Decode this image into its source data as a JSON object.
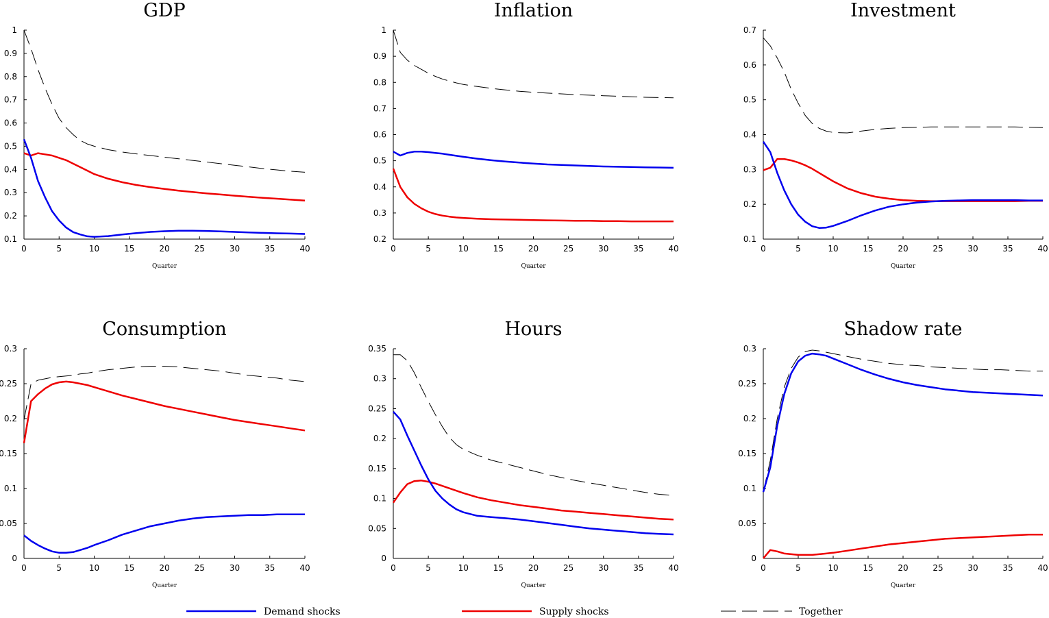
{
  "legend": {
    "demand_label": "Demand shocks",
    "supply_label": "Supply shocks",
    "together_label": "Together",
    "demand_color": "#0000ee",
    "supply_color": "#ee0000",
    "together_color": "#000000"
  },
  "chart_data": [
    {
      "type": "line",
      "title": "GDP",
      "xlabel": "Quarter",
      "xlim": [
        0,
        40
      ],
      "ylim": [
        0.1,
        1
      ],
      "x_ticks": [
        "0",
        "5",
        "10",
        "15",
        "20",
        "25",
        "30",
        "35",
        "40"
      ],
      "y_ticks": [
        "0.1",
        "0.2",
        "0.3",
        "0.4",
        "0.5",
        "0.6",
        "0.7",
        "0.8",
        "0.9",
        "1"
      ],
      "x": [
        0,
        1,
        2,
        3,
        4,
        5,
        6,
        7,
        8,
        9,
        10,
        12,
        14,
        16,
        18,
        20,
        22,
        24,
        26,
        28,
        30,
        32,
        34,
        36,
        38,
        40
      ],
      "series": [
        {
          "name": "Demand shocks",
          "values": [
            0.53,
            0.45,
            0.35,
            0.28,
            0.22,
            0.18,
            0.15,
            0.13,
            0.12,
            0.112,
            0.11,
            0.113,
            0.12,
            0.126,
            0.131,
            0.134,
            0.136,
            0.136,
            0.135,
            0.133,
            0.131,
            0.129,
            0.127,
            0.125,
            0.124,
            0.122
          ]
        },
        {
          "name": "Supply shocks",
          "values": [
            0.47,
            0.46,
            0.47,
            0.465,
            0.46,
            0.45,
            0.44,
            0.425,
            0.41,
            0.395,
            0.38,
            0.36,
            0.345,
            0.333,
            0.324,
            0.316,
            0.309,
            0.303,
            0.297,
            0.292,
            0.287,
            0.282,
            0.278,
            0.274,
            0.27,
            0.266
          ]
        },
        {
          "name": "Together",
          "values": [
            1.0,
            0.92,
            0.83,
            0.75,
            0.68,
            0.62,
            0.58,
            0.55,
            0.525,
            0.51,
            0.5,
            0.485,
            0.475,
            0.467,
            0.46,
            0.453,
            0.446,
            0.439,
            0.432,
            0.425,
            0.418,
            0.411,
            0.404,
            0.398,
            0.392,
            0.388
          ]
        }
      ]
    },
    {
      "type": "line",
      "title": "Inflation",
      "xlabel": "Quarter",
      "xlim": [
        0,
        40
      ],
      "ylim": [
        0.2,
        1
      ],
      "x_ticks": [
        "0",
        "5",
        "10",
        "15",
        "20",
        "25",
        "30",
        "35",
        "40"
      ],
      "y_ticks": [
        "0.2",
        "0.3",
        "0.4",
        "0.5",
        "0.6",
        "0.7",
        "0.8",
        "0.9",
        "1"
      ],
      "x": [
        0,
        1,
        2,
        3,
        4,
        5,
        6,
        7,
        8,
        9,
        10,
        12,
        14,
        16,
        18,
        20,
        22,
        24,
        26,
        28,
        30,
        32,
        34,
        36,
        38,
        40
      ],
      "series": [
        {
          "name": "Demand shocks",
          "values": [
            0.535,
            0.52,
            0.53,
            0.535,
            0.535,
            0.533,
            0.53,
            0.527,
            0.523,
            0.519,
            0.515,
            0.508,
            0.502,
            0.497,
            0.493,
            0.489,
            0.486,
            0.484,
            0.482,
            0.48,
            0.478,
            0.477,
            0.476,
            0.475,
            0.474,
            0.473
          ]
        },
        {
          "name": "Supply shocks",
          "values": [
            0.47,
            0.4,
            0.36,
            0.335,
            0.318,
            0.305,
            0.296,
            0.29,
            0.286,
            0.283,
            0.281,
            0.278,
            0.276,
            0.275,
            0.274,
            0.273,
            0.272,
            0.271,
            0.27,
            0.27,
            0.269,
            0.269,
            0.268,
            0.268,
            0.268,
            0.268
          ]
        },
        {
          "name": "Together",
          "values": [
            1.0,
            0.915,
            0.885,
            0.865,
            0.85,
            0.835,
            0.823,
            0.813,
            0.805,
            0.798,
            0.792,
            0.784,
            0.777,
            0.771,
            0.766,
            0.762,
            0.759,
            0.756,
            0.753,
            0.751,
            0.749,
            0.747,
            0.745,
            0.743,
            0.742,
            0.741
          ]
        }
      ]
    },
    {
      "type": "line",
      "title": "Investment",
      "xlabel": "Quarter",
      "xlim": [
        0,
        40
      ],
      "ylim": [
        0.1,
        0.7
      ],
      "x_ticks": [
        "0",
        "5",
        "10",
        "15",
        "20",
        "25",
        "30",
        "35",
        "40"
      ],
      "y_ticks": [
        "0.1",
        "0.2",
        "0.3",
        "0.4",
        "0.5",
        "0.6",
        "0.7"
      ],
      "x": [
        0,
        1,
        2,
        3,
        4,
        5,
        6,
        7,
        8,
        9,
        10,
        12,
        14,
        16,
        18,
        20,
        22,
        24,
        26,
        28,
        30,
        32,
        34,
        36,
        38,
        40
      ],
      "series": [
        {
          "name": "Demand shocks",
          "values": [
            0.38,
            0.35,
            0.29,
            0.24,
            0.2,
            0.17,
            0.15,
            0.137,
            0.132,
            0.133,
            0.138,
            0.152,
            0.168,
            0.182,
            0.193,
            0.2,
            0.205,
            0.208,
            0.21,
            0.211,
            0.212,
            0.212,
            0.212,
            0.212,
            0.211,
            0.211
          ]
        },
        {
          "name": "Supply shocks",
          "values": [
            0.298,
            0.305,
            0.33,
            0.33,
            0.326,
            0.32,
            0.312,
            0.302,
            0.29,
            0.278,
            0.266,
            0.246,
            0.232,
            0.222,
            0.216,
            0.212,
            0.21,
            0.209,
            0.209,
            0.209,
            0.209,
            0.209,
            0.209,
            0.209,
            0.21,
            0.21
          ]
        },
        {
          "name": "Together",
          "values": [
            0.678,
            0.655,
            0.62,
            0.58,
            0.53,
            0.49,
            0.455,
            0.432,
            0.418,
            0.41,
            0.406,
            0.405,
            0.41,
            0.415,
            0.418,
            0.42,
            0.421,
            0.422,
            0.422,
            0.422,
            0.422,
            0.422,
            0.422,
            0.422,
            0.421,
            0.42
          ]
        }
      ]
    },
    {
      "type": "line",
      "title": "Consumption",
      "xlabel": "Quarter",
      "xlim": [
        0,
        40
      ],
      "ylim": [
        0,
        0.3
      ],
      "x_ticks": [
        "0",
        "5",
        "10",
        "15",
        "20",
        "25",
        "30",
        "35",
        "40"
      ],
      "y_ticks": [
        "0",
        "0.05",
        "0.1",
        "0.15",
        "0.2",
        "0.25",
        "0.3"
      ],
      "x": [
        0,
        1,
        2,
        3,
        4,
        5,
        6,
        7,
        8,
        9,
        10,
        12,
        14,
        16,
        18,
        20,
        22,
        24,
        26,
        28,
        30,
        32,
        34,
        36,
        38,
        40
      ],
      "series": [
        {
          "name": "Demand shocks",
          "values": [
            0.033,
            0.025,
            0.019,
            0.014,
            0.01,
            0.008,
            0.008,
            0.009,
            0.012,
            0.015,
            0.019,
            0.026,
            0.034,
            0.04,
            0.046,
            0.05,
            0.054,
            0.057,
            0.059,
            0.06,
            0.061,
            0.062,
            0.062,
            0.063,
            0.063,
            0.063
          ]
        },
        {
          "name": "Supply shocks",
          "values": [
            0.165,
            0.225,
            0.235,
            0.243,
            0.249,
            0.252,
            0.253,
            0.252,
            0.25,
            0.248,
            0.245,
            0.239,
            0.233,
            0.228,
            0.223,
            0.218,
            0.214,
            0.21,
            0.206,
            0.202,
            0.198,
            0.195,
            0.192,
            0.189,
            0.186,
            0.183
          ]
        },
        {
          "name": "Together",
          "values": [
            0.198,
            0.25,
            0.255,
            0.257,
            0.259,
            0.26,
            0.261,
            0.262,
            0.264,
            0.265,
            0.267,
            0.27,
            0.272,
            0.274,
            0.275,
            0.275,
            0.274,
            0.272,
            0.27,
            0.268,
            0.265,
            0.262,
            0.26,
            0.258,
            0.255,
            0.253
          ]
        }
      ]
    },
    {
      "type": "line",
      "title": "Hours",
      "xlabel": "Quarter",
      "xlim": [
        0,
        40
      ],
      "ylim": [
        0,
        0.35
      ],
      "x_ticks": [
        "0",
        "5",
        "10",
        "15",
        "20",
        "25",
        "30",
        "35",
        "40"
      ],
      "y_ticks": [
        "0",
        "0.05",
        "0.1",
        "0.15",
        "0.2",
        "0.25",
        "0.3",
        "0.35"
      ],
      "x": [
        0,
        1,
        2,
        3,
        4,
        5,
        6,
        7,
        8,
        9,
        10,
        12,
        14,
        16,
        18,
        20,
        22,
        24,
        26,
        28,
        30,
        32,
        34,
        36,
        38,
        40
      ],
      "series": [
        {
          "name": "Demand shocks",
          "values": [
            0.245,
            0.232,
            0.205,
            0.18,
            0.155,
            0.132,
            0.113,
            0.1,
            0.09,
            0.082,
            0.077,
            0.071,
            0.069,
            0.067,
            0.065,
            0.062,
            0.059,
            0.056,
            0.053,
            0.05,
            0.048,
            0.046,
            0.044,
            0.042,
            0.041,
            0.04
          ]
        },
        {
          "name": "Supply shocks",
          "values": [
            0.093,
            0.11,
            0.124,
            0.129,
            0.13,
            0.128,
            0.125,
            0.121,
            0.117,
            0.113,
            0.109,
            0.102,
            0.097,
            0.093,
            0.089,
            0.086,
            0.083,
            0.08,
            0.078,
            0.076,
            0.074,
            0.072,
            0.07,
            0.068,
            0.066,
            0.065
          ]
        },
        {
          "name": "Together",
          "values": [
            0.34,
            0.34,
            0.33,
            0.31,
            0.285,
            0.262,
            0.24,
            0.22,
            0.202,
            0.19,
            0.182,
            0.172,
            0.164,
            0.158,
            0.152,
            0.146,
            0.14,
            0.135,
            0.13,
            0.126,
            0.122,
            0.118,
            0.114,
            0.11,
            0.107,
            0.105
          ]
        }
      ]
    },
    {
      "type": "line",
      "title": "Shadow rate",
      "xlabel": "Quarter",
      "xlim": [
        0,
        40
      ],
      "ylim": [
        0,
        0.3
      ],
      "x_ticks": [
        "0",
        "5",
        "10",
        "15",
        "20",
        "25",
        "30",
        "35",
        "40"
      ],
      "y_ticks": [
        "0",
        "0.05",
        "0.1",
        "0.15",
        "0.2",
        "0.25",
        "0.3"
      ],
      "x": [
        0,
        1,
        2,
        3,
        4,
        5,
        6,
        7,
        8,
        9,
        10,
        12,
        14,
        16,
        18,
        20,
        22,
        24,
        26,
        28,
        30,
        32,
        34,
        36,
        38,
        40
      ],
      "series": [
        {
          "name": "Demand shocks",
          "values": [
            0.095,
            0.13,
            0.19,
            0.235,
            0.265,
            0.282,
            0.29,
            0.293,
            0.292,
            0.29,
            0.286,
            0.278,
            0.27,
            0.263,
            0.257,
            0.252,
            0.248,
            0.245,
            0.242,
            0.24,
            0.238,
            0.237,
            0.236,
            0.235,
            0.234,
            0.233
          ]
        },
        {
          "name": "Supply shocks",
          "values": [
            0.0,
            0.012,
            0.01,
            0.007,
            0.006,
            0.005,
            0.005,
            0.005,
            0.006,
            0.007,
            0.008,
            0.011,
            0.014,
            0.017,
            0.02,
            0.022,
            0.024,
            0.026,
            0.028,
            0.029,
            0.03,
            0.031,
            0.032,
            0.033,
            0.034,
            0.034
          ]
        },
        {
          "name": "Together",
          "values": [
            0.095,
            0.14,
            0.2,
            0.245,
            0.272,
            0.288,
            0.296,
            0.298,
            0.297,
            0.295,
            0.293,
            0.289,
            0.285,
            0.282,
            0.279,
            0.277,
            0.276,
            0.274,
            0.273,
            0.272,
            0.271,
            0.27,
            0.27,
            0.269,
            0.268,
            0.268
          ]
        }
      ]
    }
  ]
}
